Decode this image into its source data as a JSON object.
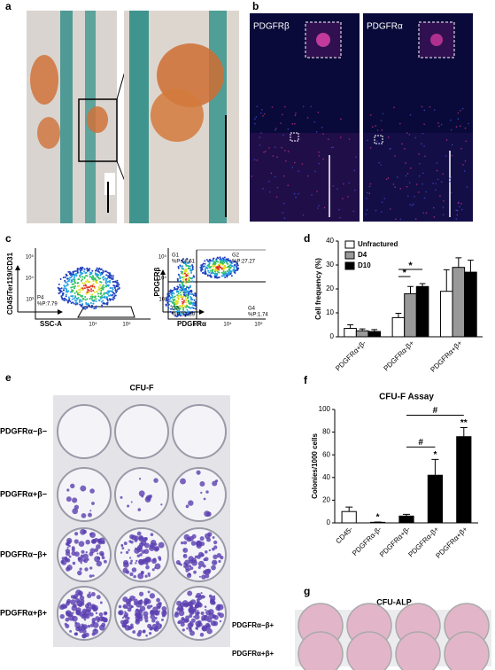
{
  "panel_labels": [
    "a",
    "b",
    "c",
    "d",
    "e",
    "f",
    "g"
  ],
  "b": {
    "left": "PDGFRβ",
    "right": "PDGFRα"
  },
  "c": {
    "left": {
      "y_label": "CD45/Ter119/CD31",
      "x_label": "SSC-A",
      "gate": "P4",
      "gate_pct": "%P:7.79",
      "yticks": [
        "10⁵",
        "10⁴",
        "10³"
      ],
      "xticks": [
        "10⁴",
        "10⁵"
      ]
    },
    "right": {
      "y_label": "PDGFRβ",
      "x_label": "PDGFRα",
      "gates": [
        [
          "G1",
          "%P:18.61"
        ],
        [
          "G2",
          "%P:27.27"
        ],
        [
          "G3",
          "%P:52.39"
        ],
        [
          "G4",
          "%P:1.74"
        ]
      ],
      "yticks": [
        "10⁵",
        "10⁴",
        "10³"
      ],
      "xticks": [
        "10³",
        "10⁴",
        "10⁵"
      ]
    }
  },
  "e": {
    "title": "CFU-F",
    "rows": [
      "PDGFRα−β−",
      "PDGFRα+β−",
      "PDGFRα−β+",
      "PDGFRα+β+"
    ]
  },
  "g": {
    "title": "CFU-ALP",
    "rows": [
      "PDGFRα−β+",
      "PDGFRα+β+"
    ]
  },
  "chart_data": [
    {
      "type": "bar",
      "y_label": "Cell frequency (%)",
      "categories": [
        "PDGFRα+β-",
        "PDGFRα-β+",
        "PDGFRα+β+"
      ],
      "series": [
        {
          "name": "Unfractured",
          "color": "#ffffff",
          "values": [
            3.5,
            8,
            19
          ],
          "errors": [
            1.5,
            1.8,
            9
          ]
        },
        {
          "name": "D4",
          "color": "#999999",
          "values": [
            2.5,
            18,
            29
          ],
          "errors": [
            0.8,
            3,
            4
          ]
        },
        {
          "name": "D10",
          "color": "#000000",
          "values": [
            2.2,
            21,
            27
          ],
          "errors": [
            0.8,
            1.2,
            5
          ]
        }
      ],
      "ylim": [
        0,
        40
      ],
      "yticks": [
        0,
        10,
        20,
        30,
        40
      ],
      "annotations": [
        "*",
        "*"
      ],
      "legend": "upper-left"
    },
    {
      "type": "bar",
      "title": "CFU-F Assay",
      "y_label": "Colonies/1000 cells",
      "categories": [
        "CD45-",
        "PDGFRα-β-",
        "PDGFRα+β-",
        "PDGFRα-β+",
        "PDGFRα+β+"
      ],
      "values": [
        10,
        0.5,
        6,
        42,
        76
      ],
      "errors": [
        4,
        0.3,
        1.5,
        14,
        8
      ],
      "colors": [
        "#ffffff",
        "#ffffff",
        "#000000",
        "#000000",
        "#000000"
      ],
      "ylim": [
        0,
        100
      ],
      "yticks": [
        0,
        20,
        40,
        60,
        80,
        100
      ],
      "annotations": [
        "*",
        "*",
        "**",
        "#",
        "#"
      ]
    }
  ]
}
